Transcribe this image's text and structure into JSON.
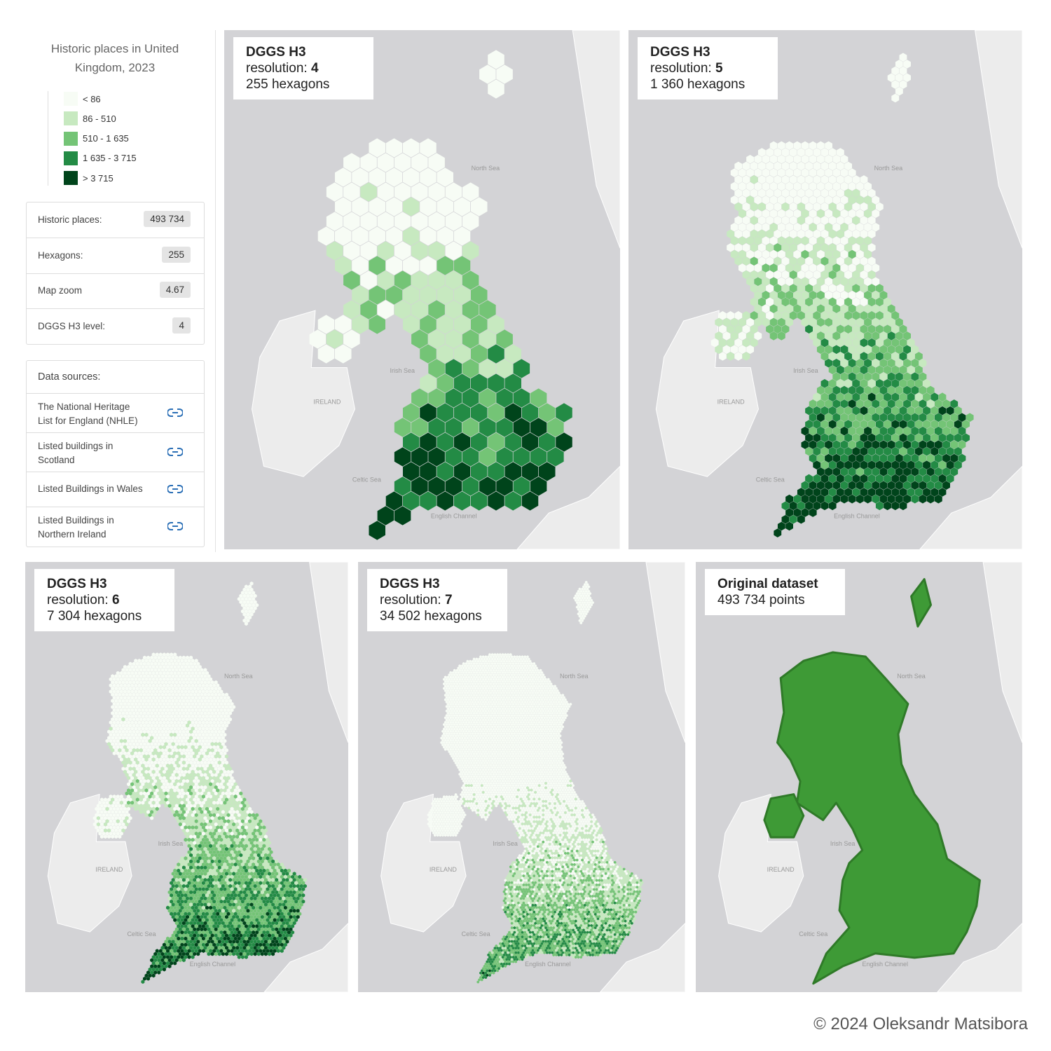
{
  "sidebar": {
    "title": "Historic places in United Kingdom, 2023",
    "legend": [
      {
        "label": "< 86",
        "color": "#f7fcf5"
      },
      {
        "label": "86 - 510",
        "color": "#c7e9c0"
      },
      {
        "label": "510 - 1 635",
        "color": "#74c476"
      },
      {
        "label": "1 635 - 3 715",
        "color": "#238b45"
      },
      {
        "label": "> 3 715",
        "color": "#00441b"
      }
    ],
    "stats": [
      {
        "label": "Historic places:",
        "value": "493 734"
      },
      {
        "label": "Hexagons:",
        "value": "255"
      },
      {
        "label": "Map zoom",
        "value": "4.67"
      },
      {
        "label": "DGGS H3 level:",
        "value": "4"
      }
    ],
    "sources": {
      "heading": "Data sources:",
      "items": [
        "The National Heritage List for England (NHLE)",
        "Listed buildings in Scotland",
        "Listed Buildings in Wales",
        "Listed Buildings in Northern Ireland"
      ]
    }
  },
  "panels": [
    {
      "title": "DGGS H3",
      "resolution_label": "resolution:",
      "resolution": 4,
      "count_label": "255 hexagons",
      "map_labels": [
        "North Sea",
        "IRELAND",
        "Irish Sea",
        "Celtic Sea",
        "English Channel"
      ]
    },
    {
      "title": "DGGS H3",
      "resolution_label": "resolution:",
      "resolution": 5,
      "count_label": "1 360 hexagons",
      "map_labels": [
        "North Sea",
        "IRELAND",
        "Irish Sea",
        "Celtic Sea",
        "English Channel"
      ]
    },
    {
      "title": "DGGS H3",
      "resolution_label": "resolution:",
      "resolution": 6,
      "count_label": "7 304 hexagons",
      "map_labels": [
        "North Sea",
        "IRELAND",
        "Irish Sea",
        "Celtic Sea",
        "English Channel"
      ]
    },
    {
      "title": "DGGS H3",
      "resolution_label": "resolution:",
      "resolution": 7,
      "count_label": "34 502 hexagons",
      "map_labels": [
        "North Sea",
        "IRELAND",
        "Irish Sea",
        "Celtic Sea",
        "English Channel"
      ]
    },
    {
      "title": "Original dataset",
      "count_label": "493 734 points",
      "point_color": "#3e9a36",
      "map_labels": [
        "North Sea",
        "IRELAND",
        "Irish Sea",
        "Celtic Sea",
        "English Channel"
      ]
    }
  ],
  "footer": "© 2024 Oleksandr Matsibora"
}
